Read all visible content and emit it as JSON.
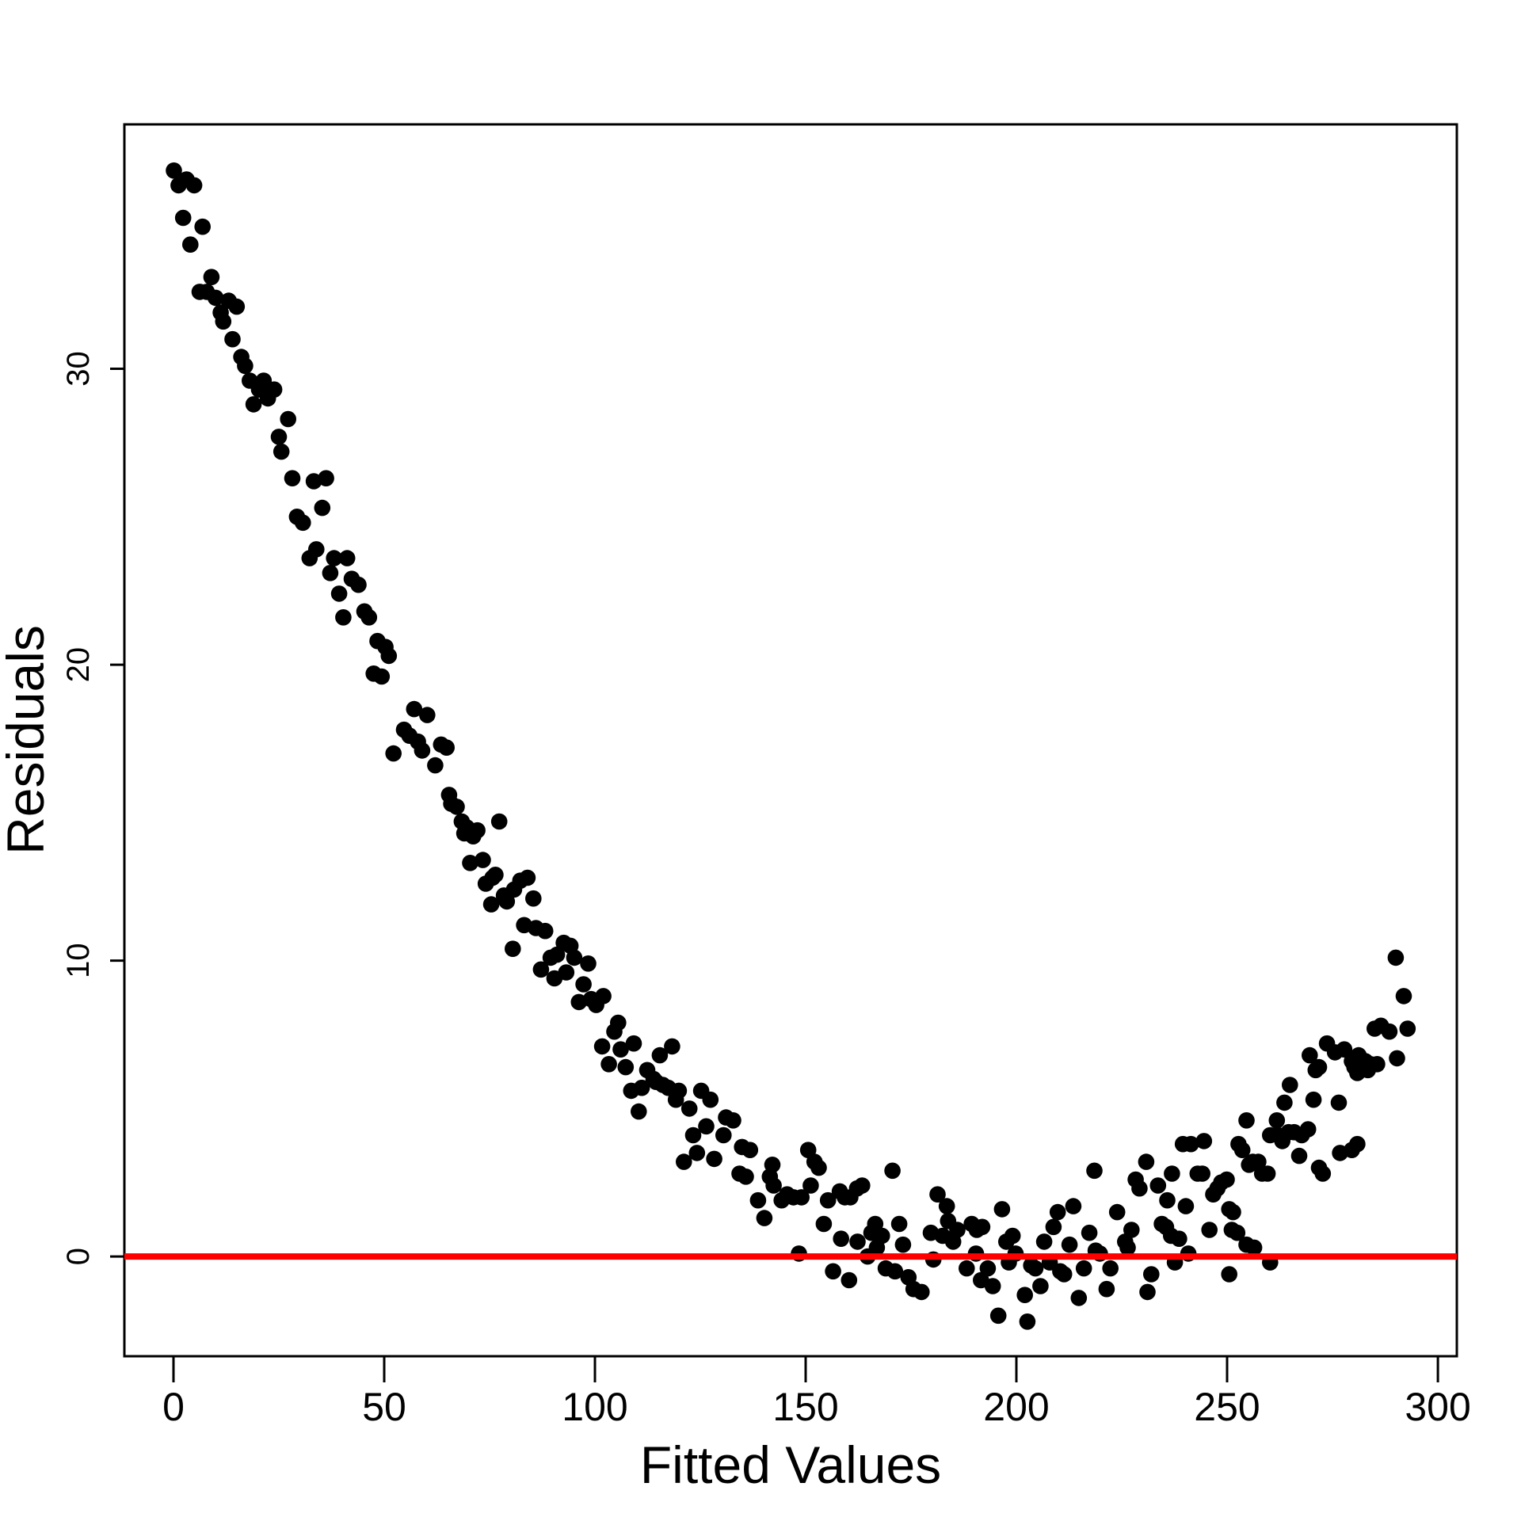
{
  "chart_data": {
    "type": "scatter",
    "title": "",
    "xlabel": "Fitted Values",
    "ylabel": "Residuals",
    "xlim": [
      -11.65,
      304.5
    ],
    "ylim": [
      -3.37,
      38.26
    ],
    "x_ticks": [
      0,
      50,
      100,
      150,
      200,
      250,
      300
    ],
    "y_ticks": [
      0,
      10,
      20,
      30
    ],
    "grid": false,
    "legend": "none",
    "point_color": "#000000",
    "point_radius": 10.3,
    "background_color": "#ffffff",
    "box_color": "#000000",
    "reference_line": {
      "y": 0,
      "color": "#ff0000",
      "width": 8
    },
    "points": [
      [
        0.1,
        36.7
      ],
      [
        1.2,
        36.2
      ],
      [
        2.3,
        35.1
      ],
      [
        3.1,
        36.4
      ],
      [
        4.0,
        34.2
      ],
      [
        4.9,
        36.2
      ],
      [
        6.2,
        32.6
      ],
      [
        6.9,
        34.8
      ],
      [
        7.9,
        32.6
      ],
      [
        9.0,
        33.1
      ],
      [
        10.0,
        32.4
      ],
      [
        11.2,
        31.9
      ],
      [
        11.8,
        31.6
      ],
      [
        13.1,
        32.3
      ],
      [
        14.0,
        31.0
      ],
      [
        15.0,
        32.1
      ],
      [
        16.1,
        30.4
      ],
      [
        17.0,
        30.1
      ],
      [
        18.1,
        29.6
      ],
      [
        19.0,
        28.8
      ],
      [
        20.3,
        29.3
      ],
      [
        21.4,
        29.6
      ],
      [
        22.4,
        29.0
      ],
      [
        23.9,
        29.3
      ],
      [
        25.0,
        27.7
      ],
      [
        25.6,
        27.2
      ],
      [
        27.2,
        28.3
      ],
      [
        28.2,
        26.3
      ],
      [
        29.3,
        25.0
      ],
      [
        30.7,
        24.8
      ],
      [
        32.3,
        23.6
      ],
      [
        33.3,
        26.2
      ],
      [
        33.9,
        23.9
      ],
      [
        35.3,
        25.3
      ],
      [
        36.2,
        26.3
      ],
      [
        37.2,
        23.1
      ],
      [
        38.1,
        23.6
      ],
      [
        39.3,
        22.4
      ],
      [
        40.3,
        21.6
      ],
      [
        41.2,
        23.6
      ],
      [
        42.3,
        22.9
      ],
      [
        43.9,
        22.7
      ],
      [
        45.3,
        21.8
      ],
      [
        46.4,
        21.6
      ],
      [
        47.5,
        19.7
      ],
      [
        48.4,
        20.8
      ],
      [
        49.4,
        19.6
      ],
      [
        50.3,
        20.6
      ],
      [
        51.1,
        20.3
      ],
      [
        52.2,
        17.0
      ],
      [
        54.7,
        17.8
      ],
      [
        56.0,
        17.6
      ],
      [
        57.1,
        18.5
      ],
      [
        58.0,
        17.4
      ],
      [
        59.0,
        17.1
      ],
      [
        60.2,
        18.3
      ],
      [
        62.1,
        16.6
      ],
      [
        63.5,
        17.3
      ],
      [
        64.8,
        17.2
      ],
      [
        65.4,
        15.6
      ],
      [
        65.9,
        15.3
      ],
      [
        67.2,
        15.2
      ],
      [
        68.4,
        14.7
      ],
      [
        69.0,
        14.3
      ],
      [
        69.6,
        14.5
      ],
      [
        70.4,
        13.3
      ],
      [
        71.1,
        14.2
      ],
      [
        72.1,
        14.4
      ],
      [
        73.4,
        13.4
      ],
      [
        74.1,
        12.6
      ],
      [
        75.4,
        11.9
      ],
      [
        75.7,
        12.8
      ],
      [
        76.4,
        12.9
      ],
      [
        77.3,
        14.7
      ],
      [
        78.4,
        12.2
      ],
      [
        79.1,
        12.0
      ],
      [
        80.5,
        10.4
      ],
      [
        80.8,
        12.4
      ],
      [
        82.3,
        12.7
      ],
      [
        83.2,
        11.2
      ],
      [
        84.0,
        12.8
      ],
      [
        85.4,
        12.1
      ],
      [
        86.0,
        11.1
      ],
      [
        87.2,
        9.7
      ],
      [
        88.2,
        11.0
      ],
      [
        89.5,
        10.1
      ],
      [
        90.4,
        9.4
      ],
      [
        91.0,
        10.2
      ],
      [
        92.6,
        10.6
      ],
      [
        93.2,
        9.6
      ],
      [
        94.2,
        10.5
      ],
      [
        95.1,
        10.1
      ],
      [
        96.2,
        8.6
      ],
      [
        97.3,
        9.2
      ],
      [
        98.4,
        9.9
      ],
      [
        99.1,
        8.7
      ],
      [
        100.3,
        8.5
      ],
      [
        101.7,
        7.1
      ],
      [
        102.0,
        8.8
      ],
      [
        103.3,
        6.5
      ],
      [
        104.6,
        7.6
      ],
      [
        105.5,
        7.9
      ],
      [
        106.1,
        7.0
      ],
      [
        107.3,
        6.4
      ],
      [
        108.6,
        5.6
      ],
      [
        109.2,
        7.2
      ],
      [
        110.4,
        4.9
      ],
      [
        111.1,
        5.7
      ],
      [
        112.4,
        6.3
      ],
      [
        113.9,
        6.0
      ],
      [
        114.5,
        5.9
      ],
      [
        115.4,
        6.8
      ],
      [
        116.1,
        5.8
      ],
      [
        117.4,
        5.7
      ],
      [
        118.3,
        7.1
      ],
      [
        119.2,
        5.3
      ],
      [
        119.9,
        5.6
      ],
      [
        121.1,
        3.2
      ],
      [
        122.4,
        5.0
      ],
      [
        123.3,
        4.1
      ],
      [
        124.2,
        3.5
      ],
      [
        125.2,
        5.6
      ],
      [
        126.4,
        4.4
      ],
      [
        127.4,
        5.3
      ],
      [
        128.3,
        3.3
      ],
      [
        130.5,
        4.1
      ],
      [
        131.1,
        4.7
      ],
      [
        132.8,
        4.6
      ],
      [
        134.3,
        2.8
      ],
      [
        134.9,
        3.7
      ],
      [
        135.8,
        2.7
      ],
      [
        136.8,
        3.6
      ],
      [
        138.7,
        1.9
      ],
      [
        140.2,
        1.3
      ],
      [
        141.5,
        2.7
      ],
      [
        142.1,
        3.1
      ],
      [
        142.4,
        2.4
      ],
      [
        144.3,
        1.9
      ],
      [
        145.6,
        2.1
      ],
      [
        147.1,
        2.0
      ],
      [
        148.4,
        0.1
      ],
      [
        149.0,
        2.0
      ],
      [
        150.6,
        3.6
      ],
      [
        151.2,
        2.4
      ],
      [
        152.1,
        3.2
      ],
      [
        153.1,
        3.0
      ],
      [
        154.3,
        1.1
      ],
      [
        155.3,
        1.9
      ],
      [
        156.5,
        -0.5
      ],
      [
        158.1,
        2.2
      ],
      [
        158.4,
        0.6
      ],
      [
        159.3,
        2.0
      ],
      [
        160.3,
        -0.8
      ],
      [
        160.6,
        2.0
      ],
      [
        162.2,
        2.3
      ],
      [
        162.3,
        0.5
      ],
      [
        163.4,
        2.4
      ],
      [
        164.7,
        0.0
      ],
      [
        165.6,
        0.8
      ],
      [
        166.5,
        1.1
      ],
      [
        166.9,
        0.3
      ],
      [
        168.1,
        0.7
      ],
      [
        169.0,
        -0.4
      ],
      [
        170.6,
        2.9
      ],
      [
        171.2,
        -0.5
      ],
      [
        172.2,
        1.1
      ],
      [
        173.1,
        0.4
      ],
      [
        174.4,
        -0.7
      ],
      [
        175.6,
        -1.1
      ],
      [
        177.5,
        -1.2
      ],
      [
        179.7,
        0.8
      ],
      [
        180.3,
        -0.1
      ],
      [
        181.3,
        2.1
      ],
      [
        182.5,
        0.7
      ],
      [
        183.5,
        1.7
      ],
      [
        183.8,
        1.2
      ],
      [
        185.0,
        0.5
      ],
      [
        186.0,
        0.9
      ],
      [
        188.2,
        -0.4
      ],
      [
        189.4,
        1.1
      ],
      [
        190.4,
        0.1
      ],
      [
        190.6,
        0.9
      ],
      [
        191.6,
        -0.8
      ],
      [
        191.9,
        1.0
      ],
      [
        193.2,
        -0.4
      ],
      [
        194.4,
        -1.0
      ],
      [
        195.7,
        -2.0
      ],
      [
        196.6,
        1.6
      ],
      [
        197.6,
        0.5
      ],
      [
        198.2,
        -0.2
      ],
      [
        199.1,
        0.7
      ],
      [
        199.8,
        0.1
      ],
      [
        202.0,
        -1.3
      ],
      [
        202.6,
        -2.2
      ],
      [
        203.5,
        -0.3
      ],
      [
        204.5,
        -0.4
      ],
      [
        205.7,
        -1.0
      ],
      [
        206.6,
        0.5
      ],
      [
        207.9,
        -0.2
      ],
      [
        208.8,
        1.0
      ],
      [
        209.8,
        1.5
      ],
      [
        210.4,
        -0.5
      ],
      [
        211.3,
        -0.6
      ],
      [
        212.6,
        0.4
      ],
      [
        213.5,
        1.7
      ],
      [
        214.8,
        -1.4
      ],
      [
        216.0,
        -0.4
      ],
      [
        217.3,
        0.8
      ],
      [
        218.5,
        2.9
      ],
      [
        218.8,
        0.2
      ],
      [
        219.8,
        0.1
      ],
      [
        221.4,
        -1.1
      ],
      [
        222.3,
        -0.4
      ],
      [
        223.9,
        1.5
      ],
      [
        225.8,
        0.5
      ],
      [
        226.4,
        0.3
      ],
      [
        227.3,
        0.9
      ],
      [
        228.3,
        2.6
      ],
      [
        229.2,
        2.3
      ],
      [
        230.8,
        3.2
      ],
      [
        231.1,
        -1.2
      ],
      [
        232.0,
        -0.6
      ],
      [
        233.6,
        2.4
      ],
      [
        234.5,
        1.1
      ],
      [
        235.5,
        1.0
      ],
      [
        235.8,
        1.9
      ],
      [
        236.7,
        0.7
      ],
      [
        236.9,
        2.8
      ],
      [
        237.6,
        -0.2
      ],
      [
        238.6,
        0.6
      ],
      [
        239.5,
        3.8
      ],
      [
        240.2,
        1.7
      ],
      [
        240.8,
        0.1
      ],
      [
        241.4,
        3.8
      ],
      [
        243.0,
        2.8
      ],
      [
        244.1,
        2.8
      ],
      [
        244.5,
        3.9
      ],
      [
        245.8,
        0.9
      ],
      [
        246.7,
        2.1
      ],
      [
        247.7,
        2.3
      ],
      [
        248.6,
        2.5
      ],
      [
        249.9,
        2.6
      ],
      [
        250.5,
        -0.6
      ],
      [
        250.5,
        1.6
      ],
      [
        251.1,
        0.9
      ],
      [
        251.4,
        1.5
      ],
      [
        252.4,
        0.8
      ],
      [
        252.7,
        3.8
      ],
      [
        253.6,
        3.6
      ],
      [
        254.6,
        0.4
      ],
      [
        254.6,
        4.6
      ],
      [
        255.2,
        3.1
      ],
      [
        256.1,
        3.2
      ],
      [
        256.4,
        0.3
      ],
      [
        257.4,
        3.2
      ],
      [
        258.3,
        2.8
      ],
      [
        259.6,
        2.8
      ],
      [
        260.2,
        -0.2
      ],
      [
        260.2,
        4.1
      ],
      [
        261.8,
        4.6
      ],
      [
        262.1,
        4.1
      ],
      [
        263.1,
        3.9
      ],
      [
        263.6,
        5.2
      ],
      [
        264.6,
        4.2
      ],
      [
        264.9,
        5.8
      ],
      [
        265.9,
        4.2
      ],
      [
        267.1,
        3.4
      ],
      [
        267.7,
        4.1
      ],
      [
        269.2,
        4.3
      ],
      [
        269.6,
        6.8
      ],
      [
        270.5,
        5.3
      ],
      [
        271.0,
        6.3
      ],
      [
        271.8,
        3.0
      ],
      [
        271.8,
        6.4
      ],
      [
        272.7,
        2.8
      ],
      [
        273.7,
        7.2
      ],
      [
        275.6,
        6.9
      ],
      [
        276.5,
        5.2
      ],
      [
        276.8,
        3.5
      ],
      [
        277.8,
        7.0
      ],
      [
        279.6,
        3.6
      ],
      [
        279.6,
        6.6
      ],
      [
        280.2,
        6.4
      ],
      [
        280.9,
        3.8
      ],
      [
        280.9,
        6.2
      ],
      [
        281.2,
        6.8
      ],
      [
        282.8,
        6.6
      ],
      [
        283.4,
        6.3
      ],
      [
        284.0,
        6.5
      ],
      [
        285.0,
        7.7
      ],
      [
        285.6,
        6.5
      ],
      [
        286.5,
        7.8
      ],
      [
        288.5,
        7.6
      ],
      [
        290.0,
        10.1
      ],
      [
        290.3,
        6.7
      ],
      [
        291.9,
        8.8
      ],
      [
        292.8,
        7.7
      ]
    ]
  }
}
